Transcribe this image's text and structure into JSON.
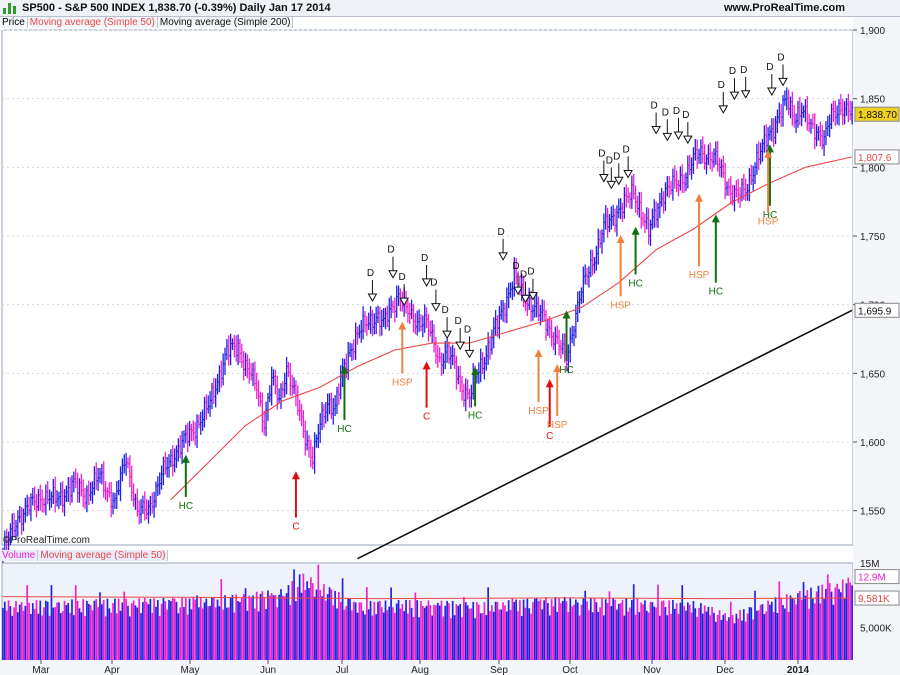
{
  "header": {
    "title": "SP500 - S&P 500 INDEX    1,838.70 (-0.39%)    Daily  Jan 17 2014",
    "site": "www.ProRealTime.com"
  },
  "legend": {
    "price": "Price",
    "ma50": "Moving average (Simple 50)",
    "ma200": "Moving average (Simple 200)"
  },
  "volume_legend": {
    "volume": "Volume",
    "ma50": "Moving average (Simple 50)"
  },
  "copyright": "©ProRealTime.com",
  "colors": {
    "up": "#2222dd",
    "down": "#ee22cc",
    "ma50": "#e84848",
    "ma200": "#111111",
    "green": "#107010",
    "red": "#e01010",
    "orange": "#f08040",
    "panel": "#eef2fa",
    "grid": "#d0d8e8"
  },
  "chart_data": [
    {
      "type": "candlestick",
      "ylim": [
        1525,
        1900
      ],
      "yticks": [
        1550,
        1600,
        1650,
        1700,
        1750,
        1800,
        1850,
        1900
      ],
      "ytick_labels": [
        "1,550",
        "1,600",
        "1,650",
        "1,700",
        "1,750",
        "1,800",
        "1,850",
        "1,900"
      ],
      "x_labels": [
        "Mar",
        "Apr",
        "May",
        "Jun",
        "Jul",
        "Aug",
        "Sep",
        "Oct",
        "Nov",
        "Dec",
        "2014"
      ],
      "last_price": "1,838.70",
      "ma50_value": "1,807.6",
      "ma200_value": "1,695.9",
      "close_path": [
        [
          0,
          1520
        ],
        [
          8,
          1545
        ],
        [
          20,
          1560
        ],
        [
          28,
          1558
        ],
        [
          38,
          1568
        ],
        [
          45,
          1562
        ],
        [
          52,
          1575
        ],
        [
          60,
          1555
        ],
        [
          66,
          1590
        ],
        [
          72,
          1548
        ],
        [
          78,
          1552
        ],
        [
          86,
          1578
        ],
        [
          92,
          1592
        ],
        [
          100,
          1605
        ],
        [
          110,
          1625
        ],
        [
          116,
          1650
        ],
        [
          120,
          1665
        ],
        [
          126,
          1670
        ],
        [
          130,
          1655
        ],
        [
          136,
          1640
        ],
        [
          140,
          1615
        ],
        [
          144,
          1645
        ],
        [
          148,
          1630
        ],
        [
          152,
          1655
        ],
        [
          156,
          1635
        ],
        [
          162,
          1605
        ],
        [
          166,
          1588
        ],
        [
          170,
          1612
        ],
        [
          174,
          1630
        ],
        [
          178,
          1625
        ],
        [
          182,
          1650
        ],
        [
          186,
          1668
        ],
        [
          190,
          1678
        ],
        [
          196,
          1688
        ],
        [
          200,
          1692
        ],
        [
          204,
          1685
        ],
        [
          208,
          1698
        ],
        [
          212,
          1708
        ],
        [
          216,
          1695
        ],
        [
          220,
          1690
        ],
        [
          226,
          1688
        ],
        [
          230,
          1675
        ],
        [
          234,
          1660
        ],
        [
          238,
          1665
        ],
        [
          242,
          1655
        ],
        [
          246,
          1640
        ],
        [
          250,
          1632
        ],
        [
          254,
          1650
        ],
        [
          258,
          1662
        ],
        [
          262,
          1675
        ],
        [
          266,
          1690
        ],
        [
          270,
          1705
        ],
        [
          274,
          1720
        ],
        [
          278,
          1708
        ],
        [
          282,
          1702
        ],
        [
          286,
          1695
        ],
        [
          290,
          1690
        ],
        [
          294,
          1680
        ],
        [
          298,
          1670
        ],
        [
          302,
          1660
        ],
        [
          306,
          1688
        ],
        [
          310,
          1710
        ],
        [
          314,
          1725
        ],
        [
          318,
          1740
        ],
        [
          322,
          1756
        ],
        [
          326,
          1762
        ],
        [
          330,
          1770
        ],
        [
          334,
          1775
        ],
        [
          338,
          1782
        ],
        [
          342,
          1768
        ],
        [
          346,
          1752
        ],
        [
          350,
          1768
        ],
        [
          354,
          1782
        ],
        [
          358,
          1785
        ],
        [
          362,
          1790
        ],
        [
          366,
          1795
        ],
        [
          370,
          1805
        ],
        [
          374,
          1812
        ],
        [
          378,
          1808
        ],
        [
          382,
          1805
        ],
        [
          386,
          1795
        ],
        [
          390,
          1782
        ],
        [
          394,
          1778
        ],
        [
          398,
          1785
        ],
        [
          402,
          1798
        ],
        [
          406,
          1810
        ],
        [
          410,
          1825
        ],
        [
          414,
          1832
        ],
        [
          418,
          1842
        ],
        [
          420,
          1850
        ],
        [
          424,
          1838
        ],
        [
          428,
          1840
        ],
        [
          432,
          1832
        ],
        [
          436,
          1828
        ],
        [
          440,
          1818
        ],
        [
          444,
          1838
        ],
        [
          448,
          1845
        ],
        [
          452,
          1840
        ],
        [
          455,
          1838.7
        ]
      ],
      "series": [
        {
          "name": "Moving average (Simple 50)",
          "values": [
            [
              90,
              1558
            ],
            [
              110,
              1585
            ],
            [
              130,
              1612
            ],
            [
              150,
              1630
            ],
            [
              170,
              1640
            ],
            [
              190,
              1655
            ],
            [
              210,
              1667
            ],
            [
              230,
              1672
            ],
            [
              250,
              1672
            ],
            [
              270,
              1680
            ],
            [
              290,
              1688
            ],
            [
              310,
              1698
            ],
            [
              330,
              1716
            ],
            [
              350,
              1740
            ],
            [
              370,
              1755
            ],
            [
              390,
              1774
            ],
            [
              410,
              1788
            ],
            [
              430,
              1800
            ],
            [
              455,
              1807.6
            ]
          ]
        },
        {
          "name": "Moving average (Simple 200)",
          "values": [
            [
              190,
              1515
            ],
            [
              455,
              1695.9
            ]
          ]
        }
      ],
      "annotations": {
        "D": [
          [
            198,
            1699
          ],
          [
            209,
            1716
          ],
          [
            215,
            1696
          ],
          [
            227,
            1710
          ],
          [
            232,
            1692
          ],
          [
            238,
            1672
          ],
          [
            245,
            1664
          ],
          [
            250,
            1658
          ],
          [
            268,
            1729
          ],
          [
            276,
            1704
          ],
          [
            280,
            1698
          ],
          [
            284,
            1700
          ],
          [
            322,
            1786
          ],
          [
            326,
            1781
          ],
          [
            330,
            1784
          ],
          [
            335,
            1789
          ],
          [
            350,
            1821
          ],
          [
            356,
            1816
          ],
          [
            362,
            1817
          ],
          [
            367,
            1814
          ],
          [
            386,
            1836
          ],
          [
            392,
            1846
          ],
          [
            398,
            1847
          ],
          [
            412,
            1849
          ],
          [
            418,
            1856
          ]
        ],
        "HC": [
          [
            98,
            1560,
            1590
          ],
          [
            183,
            1616,
            1655
          ],
          [
            253,
            1626,
            1654
          ],
          [
            302,
            1659,
            1695
          ],
          [
            339,
            1722,
            1756
          ],
          [
            382,
            1716,
            1765
          ],
          [
            411,
            1772,
            1816
          ]
        ],
        "C": [
          [
            157,
            1545,
            1578
          ],
          [
            227,
            1625,
            1658
          ],
          [
            293,
            1611,
            1645
          ]
        ],
        "HSP": [
          [
            214,
            1650,
            1687
          ],
          [
            287,
            1629,
            1667
          ],
          [
            297,
            1619,
            1656
          ],
          [
            331,
            1706,
            1750
          ],
          [
            373,
            1728,
            1780
          ],
          [
            410,
            1767,
            1812
          ]
        ]
      }
    },
    {
      "type": "bar",
      "name": "Volume",
      "ylim": [
        0,
        15000000
      ],
      "ytick_labels": [
        "15M",
        "5,000K"
      ],
      "latest_volume": "12.9M",
      "ma50_volume": "9,581K",
      "volume_path": [
        [
          0,
          9200000
        ],
        [
          60,
          9500000
        ],
        [
          110,
          9800000
        ],
        [
          150,
          11000000
        ],
        [
          160,
          13500000
        ],
        [
          190,
          9200000
        ],
        [
          220,
          9300000
        ],
        [
          260,
          9000000
        ],
        [
          290,
          9800000
        ],
        [
          330,
          9600000
        ],
        [
          370,
          9200000
        ],
        [
          390,
          7200000
        ],
        [
          410,
          9400000
        ],
        [
          455,
          12900000
        ]
      ],
      "ma50_path": [
        [
          0,
          9800000
        ],
        [
          100,
          9700000
        ],
        [
          200,
          9500000
        ],
        [
          300,
          9600000
        ],
        [
          380,
          9500000
        ],
        [
          455,
          9581000
        ]
      ]
    }
  ]
}
